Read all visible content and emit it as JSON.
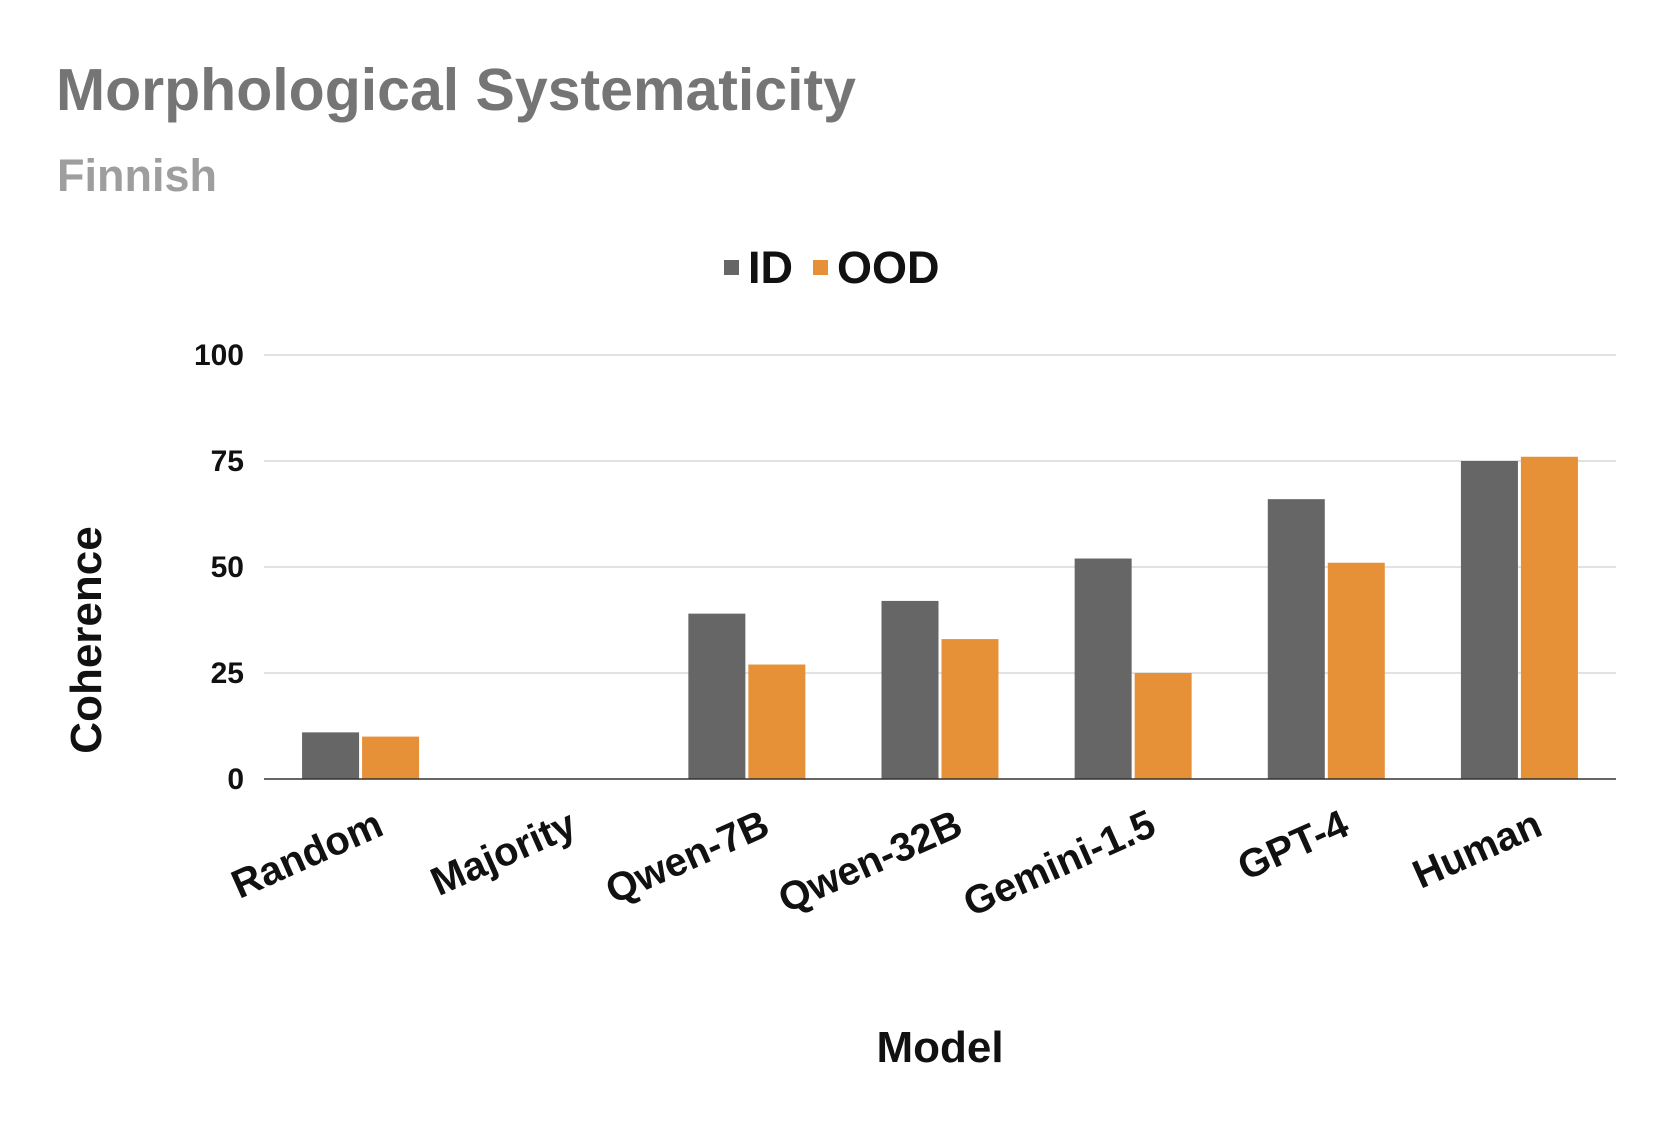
{
  "chart_data": {
    "type": "bar",
    "title": "Morphological Systematicity",
    "subtitle": "Finnish",
    "xlabel": "Model",
    "ylabel": "Coherence",
    "ylim": [
      0,
      100
    ],
    "yticks": [
      "0",
      "25",
      "50",
      "75",
      "100"
    ],
    "grid": true,
    "legend_position": "top-center",
    "categories": [
      "Random",
      "Majority",
      "Qwen-7B",
      "Qwen-32B",
      "Gemini-1.5",
      "GPT-4",
      "Human"
    ],
    "series": [
      {
        "name": "ID",
        "color": "#666666",
        "values": [
          11,
          0,
          39,
          42,
          52,
          66,
          75
        ]
      },
      {
        "name": "OOD",
        "color": "#e69138",
        "values": [
          10,
          0,
          27,
          33,
          25,
          51,
          76
        ]
      }
    ]
  }
}
